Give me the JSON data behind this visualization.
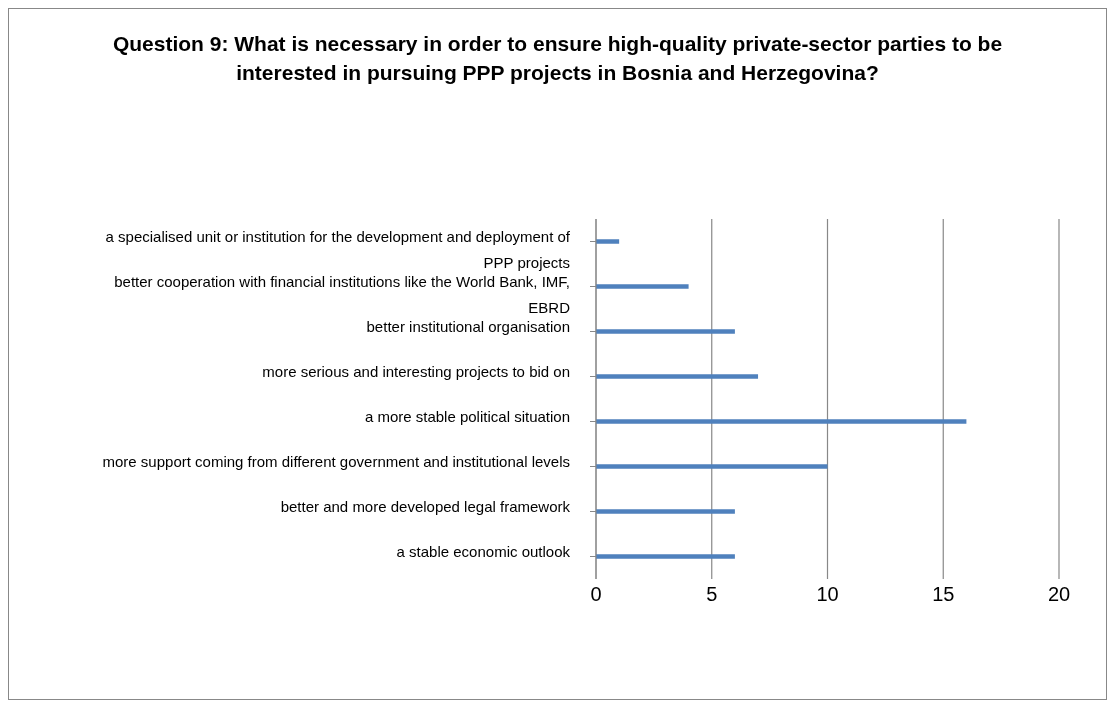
{
  "chart_data": {
    "type": "bar",
    "orientation": "horizontal",
    "title": "Question 9: What is necessary in order to ensure high-quality private-sector parties to be interested in pursuing PPP projects in Bosnia and Herzegovina?",
    "categories": [
      "a specialised unit or institution for the development and deployment of PPP projects",
      "better cooperation with financial institutions like the World Bank, IMF, EBRD",
      "better institutional organisation",
      "more serious and interesting projects to bid on",
      "a more stable political situation",
      "more support coming from different government and institutional levels",
      "better and more developed legal framework",
      "a stable economic outlook"
    ],
    "values": [
      1,
      4,
      6,
      7,
      16,
      10,
      6,
      6
    ],
    "color": "#4f81bd",
    "xlim": [
      0,
      20
    ],
    "xticks": [
      0,
      5,
      10,
      15,
      20
    ],
    "grid": "x"
  }
}
